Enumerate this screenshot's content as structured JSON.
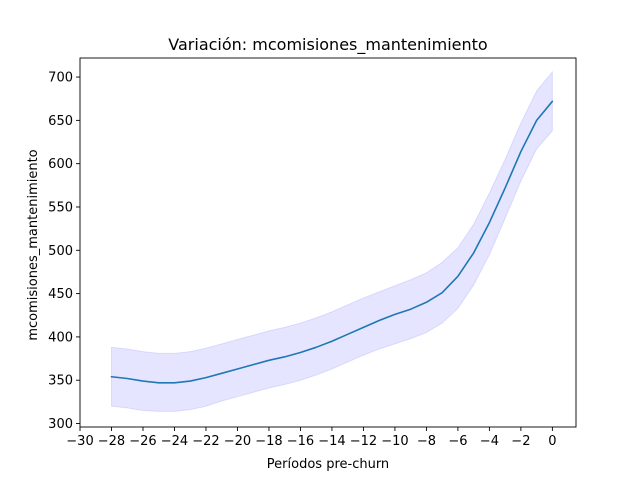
{
  "chart_data": {
    "type": "line",
    "title": "Variación: mcomisiones_mantenimiento",
    "xlabel": "Períodos pre-churn",
    "ylabel": "mcomisiones_mantenimiento",
    "xlim": [
      -30,
      1.5
    ],
    "ylim": [
      296,
      722
    ],
    "x_ticks": [
      -30,
      -28,
      -26,
      -24,
      -22,
      -20,
      -18,
      -16,
      -14,
      -12,
      -10,
      -8,
      -6,
      -4,
      -2,
      0
    ],
    "x_tick_labels": [
      "−30",
      "−28",
      "−26",
      "−24",
      "−22",
      "−20",
      "−18",
      "−16",
      "−14",
      "−12",
      "−10",
      "−8",
      "−6",
      "−4",
      "−2",
      "0"
    ],
    "y_ticks": [
      300,
      350,
      400,
      450,
      500,
      550,
      600,
      650,
      700
    ],
    "y_tick_labels": [
      "300",
      "350",
      "400",
      "450",
      "500",
      "550",
      "600",
      "650",
      "700"
    ],
    "grid": false,
    "legend": "none",
    "series": [
      {
        "color": "#1f77b4",
        "band_color": "#0000ff",
        "x": [
          -28,
          -27,
          -26,
          -25,
          -24,
          -23,
          -22,
          -21,
          -20,
          -19,
          -18,
          -17,
          -16,
          -15,
          -14,
          -13,
          -12,
          -11,
          -10,
          -9,
          -8,
          -7,
          -6,
          -5,
          -4,
          -3,
          -2,
          -1,
          0
        ],
        "y": [
          354,
          352,
          349,
          347,
          347,
          349,
          353,
          358,
          363,
          368,
          373,
          377,
          382,
          388,
          395,
          403,
          411,
          419,
          426,
          432,
          440,
          451,
          470,
          497,
          532,
          572,
          614,
          650,
          672
        ],
        "lower": [
          320,
          318,
          315,
          314,
          314,
          316,
          320,
          326,
          331,
          336,
          341,
          345,
          350,
          356,
          363,
          371,
          379,
          386,
          392,
          398,
          405,
          416,
          433,
          460,
          495,
          537,
          580,
          617,
          638
        ],
        "upper": [
          388,
          386,
          383,
          381,
          381,
          383,
          387,
          392,
          397,
          402,
          407,
          411,
          416,
          422,
          429,
          437,
          445,
          452,
          459,
          466,
          474,
          486,
          503,
          530,
          566,
          605,
          647,
          684,
          706
        ]
      }
    ]
  }
}
